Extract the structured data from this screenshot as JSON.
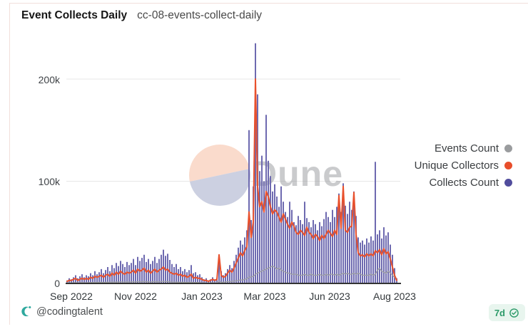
{
  "header": {
    "title": "Event Collects Daily",
    "subtitle": "cc-08-events-collect-daily"
  },
  "watermark": {
    "brand": "Dune"
  },
  "legend": [
    {
      "label": "Events Count",
      "color": "#9a9c9e",
      "series": "Events Count"
    },
    {
      "label": "Unique Collectors",
      "color": "#e84e2b",
      "series": "Unique Collectors"
    },
    {
      "label": "Collects Count",
      "color": "#514d9d",
      "series": "Collects Count"
    }
  ],
  "footer": {
    "author_handle": "@codingtalent",
    "author_icon": "dune-crescent-icon",
    "refresh_badge": {
      "label": "7d",
      "icon": "verified-check-icon"
    }
  },
  "colors": {
    "bar_fill": "#6e6ab0",
    "unique_line": "#e8502c",
    "events_line": "#9d9fa2",
    "axis_baseline": "#333333",
    "gridline": "#e7e7e7",
    "card_border": "#f2dfdb",
    "watermark_top": "#fadbcc",
    "watermark_bottom": "#ccd0e1",
    "watermark_text": "#97999c",
    "badge_bg": "#e8f5ee",
    "badge_green": "#2c9a69",
    "author_icon_teal": "#2fa99e"
  },
  "chart_data": {
    "type": "bar",
    "title": "Event Collects Daily",
    "xlabel": "",
    "ylabel": "",
    "unit": "count (values in thousands)",
    "x_range": [
      "Sep 2022",
      "Aug 2023"
    ],
    "x_tick_labels": [
      "Sep 2022",
      "Nov 2022",
      "Jan 2023",
      "Mar 2023",
      "Jun 2023",
      "Aug 2023"
    ],
    "y_tick_labels": [
      "0",
      "100k",
      "200k"
    ],
    "ylim_k": [
      0,
      240
    ],
    "grid": "horizontal",
    "legend_position": "right",
    "series": [
      {
        "name": "Collects Count",
        "type": "bar",
        "color": "#6e6ab0",
        "values_k": [
          3,
          5,
          4,
          6,
          8,
          5,
          7,
          9,
          6,
          8,
          7,
          10,
          8,
          12,
          9,
          11,
          14,
          10,
          13,
          16,
          12,
          18,
          15,
          20,
          17,
          22,
          19,
          16,
          21,
          18,
          20,
          24,
          18,
          26,
          22,
          25,
          28,
          21,
          24,
          19,
          22,
          26,
          20,
          24,
          28,
          33,
          27,
          29,
          23,
          19,
          16,
          19,
          14,
          16,
          12,
          14,
          11,
          13,
          18,
          10,
          11,
          8,
          9,
          6,
          4,
          5,
          3,
          4,
          6,
          4,
          5,
          26,
          12,
          8,
          10,
          14,
          18,
          15,
          22,
          28,
          35,
          42,
          38,
          45,
          52,
          150,
          62,
          95,
          235,
          185,
          110,
          125,
          100,
          165,
          120,
          105,
          90,
          97,
          85,
          75,
          95,
          80,
          70,
          65,
          80,
          72,
          60,
          57,
          66,
          62,
          58,
          80,
          64,
          60,
          55,
          62,
          58,
          52,
          60,
          56,
          63,
          70,
          65,
          60,
          72,
          65,
          75,
          88,
          70,
          98,
          76,
          68,
          80,
          72,
          90,
          66,
          45,
          40,
          42,
          38,
          44,
          40,
          46,
          42,
          119,
          48,
          52,
          44,
          55,
          47,
          50,
          38,
          28,
          15,
          5
        ]
      },
      {
        "name": "Events Count",
        "type": "line",
        "color": "#9d9fa2",
        "width": 1.3,
        "values_k": [
          0.5,
          0.6,
          0.5,
          0.7,
          0.8,
          0.6,
          0.7,
          0.9,
          0.7,
          0.8,
          0.8,
          1,
          0.9,
          1.1,
          1,
          1.1,
          1.2,
          1,
          1.2,
          1.3,
          1.1,
          1.4,
          1.2,
          1.5,
          1.3,
          1.6,
          1.4,
          1.3,
          1.5,
          1.4,
          1.5,
          1.7,
          1.4,
          1.8,
          1.6,
          1.7,
          1.9,
          1.5,
          1.7,
          1.4,
          1.6,
          1.8,
          1.5,
          1.7,
          1.8,
          2,
          1.8,
          1.9,
          1.6,
          1.4,
          1.3,
          1.4,
          1.2,
          1.3,
          1.1,
          1.2,
          1,
          1.1,
          1.3,
          0.9,
          1,
          0.9,
          0.8,
          0.7,
          0.6,
          0.5,
          0.5,
          0.6,
          0.7,
          0.6,
          0.7,
          2,
          1.2,
          1.1,
          1.5,
          1.8,
          1.6,
          2,
          2.2,
          2.5,
          3,
          3.5,
          3.2,
          4,
          4.5,
          6,
          6.5,
          7,
          9,
          10,
          11,
          12,
          13,
          14,
          15,
          16,
          17,
          16,
          14,
          15,
          13,
          12,
          11,
          10,
          10,
          9,
          9,
          9,
          8,
          8,
          8,
          9,
          8,
          8,
          9,
          8,
          8,
          8,
          9,
          8,
          8,
          9,
          8,
          9,
          9,
          8,
          9,
          8,
          9,
          10,
          9,
          10,
          9,
          9,
          10,
          9,
          10,
          9,
          8,
          8,
          8,
          8,
          9,
          8,
          9,
          13,
          15,
          12,
          11,
          10,
          12,
          10,
          8,
          6,
          4
        ]
      },
      {
        "name": "Unique Collectors",
        "type": "line",
        "color": "#e8502c",
        "width": 2,
        "values_k": [
          2,
          3,
          3,
          4,
          5,
          3,
          4,
          5,
          4,
          5,
          4,
          6,
          5,
          7,
          6,
          7,
          8,
          6,
          8,
          9,
          7,
          10,
          8,
          11,
          9,
          12,
          10,
          9,
          11,
          10,
          11,
          13,
          10,
          14,
          12,
          13,
          15,
          11,
          13,
          10,
          12,
          14,
          11,
          13,
          14,
          16,
          13,
          14,
          11,
          10,
          9,
          10,
          8,
          9,
          7,
          8,
          6,
          7,
          9,
          5,
          6,
          5,
          5,
          4,
          3,
          3,
          2,
          3,
          4,
          3,
          4,
          28,
          8,
          6,
          7,
          10,
          13,
          11,
          15,
          20,
          25,
          30,
          27,
          32,
          36,
          70,
          45,
          60,
          200,
          95,
          75,
          80,
          70,
          90,
          85,
          75,
          68,
          72,
          70,
          65,
          60,
          68,
          63,
          58,
          54,
          60,
          56,
          50,
          48,
          52,
          50,
          47,
          55,
          50,
          48,
          44,
          48,
          46,
          42,
          47,
          44,
          48,
          52,
          49,
          46,
          52,
          48,
          86,
          54,
          95,
          52,
          50,
          55,
          56,
          89,
          48,
          30,
          27,
          28,
          26,
          29,
          27,
          29,
          27,
          32,
          30,
          33,
          28,
          34,
          29,
          31,
          24,
          16,
          8,
          3
        ]
      }
    ]
  }
}
